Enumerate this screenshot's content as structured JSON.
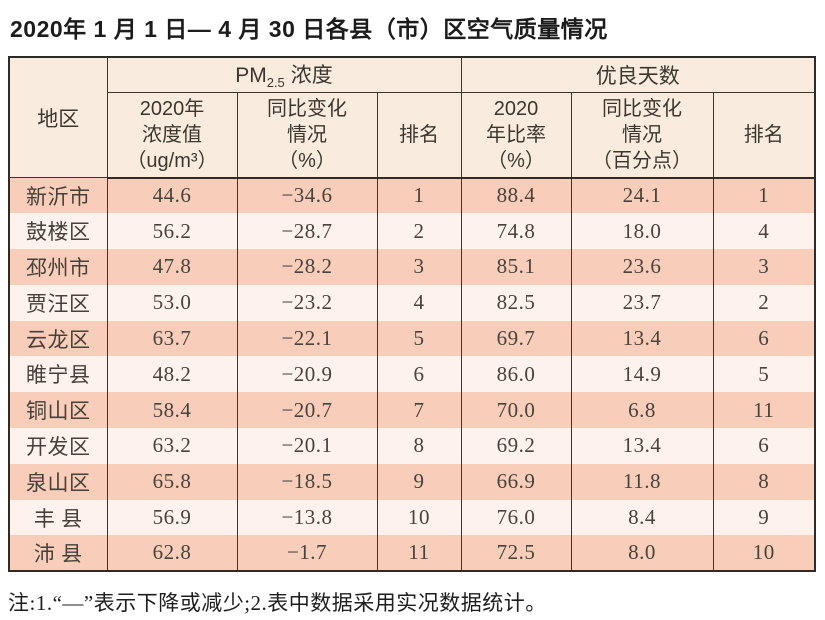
{
  "page": {
    "title": "2020年 1 月 1 日— 4 月 30 日各县（市）区空气质量情况",
    "footnote": "注:1.“—”表示下降或减少;2.表中数据采用实况数据统计。"
  },
  "colors": {
    "header_bg": "#f9ecdf",
    "row_odd_bg": "#f8cdb9",
    "row_even_bg": "#fdf2ec",
    "border": "#2f2c28",
    "text": "#48433d"
  },
  "table": {
    "header": {
      "region": "地区",
      "pm_group": {
        "prefix": "PM",
        "subscript": "2.5",
        "suffix": "浓度"
      },
      "good_group": "优良天数",
      "pm_value": "2020年\n浓度值\n（ug/m³）",
      "pm_change": "同比变化\n情况\n（%）",
      "pm_rank": "排名",
      "good_rate": "2020\n年比率\n（%）",
      "good_change": "同比变化\n情况\n（百分点）",
      "good_rank": "排名"
    },
    "rows": [
      {
        "region": "新沂市",
        "pm_value": "44.6",
        "pm_change": "−34.6",
        "pm_rank": "1",
        "good_rate": "88.4",
        "good_change": "24.1",
        "good_rank": "1"
      },
      {
        "region": "鼓楼区",
        "pm_value": "56.2",
        "pm_change": "−28.7",
        "pm_rank": "2",
        "good_rate": "74.8",
        "good_change": "18.0",
        "good_rank": "4"
      },
      {
        "region": "邳州市",
        "pm_value": "47.8",
        "pm_change": "−28.2",
        "pm_rank": "3",
        "good_rate": "85.1",
        "good_change": "23.6",
        "good_rank": "3"
      },
      {
        "region": "贾汪区",
        "pm_value": "53.0",
        "pm_change": "−23.2",
        "pm_rank": "4",
        "good_rate": "82.5",
        "good_change": "23.7",
        "good_rank": "2"
      },
      {
        "region": "云龙区",
        "pm_value": "63.7",
        "pm_change": "−22.1",
        "pm_rank": "5",
        "good_rate": "69.7",
        "good_change": "13.4",
        "good_rank": "6"
      },
      {
        "region": "睢宁县",
        "pm_value": "48.2",
        "pm_change": "−20.9",
        "pm_rank": "6",
        "good_rate": "86.0",
        "good_change": "14.9",
        "good_rank": "5"
      },
      {
        "region": "铜山区",
        "pm_value": "58.4",
        "pm_change": "−20.7",
        "pm_rank": "7",
        "good_rate": "70.0",
        "good_change": "6.8",
        "good_rank": "11"
      },
      {
        "region": "开发区",
        "pm_value": "63.2",
        "pm_change": "−20.1",
        "pm_rank": "8",
        "good_rate": "69.2",
        "good_change": "13.4",
        "good_rank": "6"
      },
      {
        "region": "泉山区",
        "pm_value": "65.8",
        "pm_change": "−18.5",
        "pm_rank": "9",
        "good_rate": "66.9",
        "good_change": "11.8",
        "good_rank": "8"
      },
      {
        "region": "丰 县",
        "pm_value": "56.9",
        "pm_change": "−13.8",
        "pm_rank": "10",
        "good_rate": "76.0",
        "good_change": "8.4",
        "good_rank": "9"
      },
      {
        "region": "沛 县",
        "pm_value": "62.8",
        "pm_change": "−1.7",
        "pm_rank": "11",
        "good_rate": "72.5",
        "good_change": "8.0",
        "good_rank": "10"
      }
    ]
  },
  "chart_data": {
    "type": "table",
    "title": "2020年1月1日—4月30日各县（市）区空气质量情况",
    "columns": [
      "地区",
      "PM2.5 2020年浓度值(ug/m3)",
      "PM2.5同比变化情况(%)",
      "PM2.5排名",
      "优良天数2020年比率(%)",
      "优良天数同比变化情况(百分点)",
      "优良天数排名"
    ],
    "rows": [
      [
        "新沂市",
        44.6,
        -34.6,
        1,
        88.4,
        24.1,
        1
      ],
      [
        "鼓楼区",
        56.2,
        -28.7,
        2,
        74.8,
        18.0,
        4
      ],
      [
        "邳州市",
        47.8,
        -28.2,
        3,
        85.1,
        23.6,
        3
      ],
      [
        "贾汪区",
        53.0,
        -23.2,
        4,
        82.5,
        23.7,
        2
      ],
      [
        "云龙区",
        63.7,
        -22.1,
        5,
        69.7,
        13.4,
        6
      ],
      [
        "睢宁县",
        48.2,
        -20.9,
        6,
        86.0,
        14.9,
        5
      ],
      [
        "铜山区",
        58.4,
        -20.7,
        7,
        70.0,
        6.8,
        11
      ],
      [
        "开发区",
        63.2,
        -20.1,
        8,
        69.2,
        13.4,
        6
      ],
      [
        "泉山区",
        65.8,
        -18.5,
        9,
        66.9,
        11.8,
        8
      ],
      [
        "丰县",
        56.9,
        -13.8,
        10,
        76.0,
        8.4,
        9
      ],
      [
        "沛县",
        62.8,
        -1.7,
        11,
        72.5,
        8.0,
        10
      ]
    ]
  }
}
